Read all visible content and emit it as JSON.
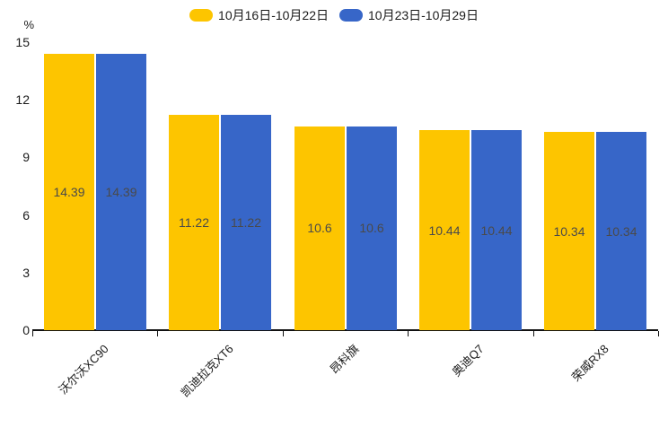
{
  "chart_data": {
    "type": "bar",
    "title": "",
    "y_unit": "%",
    "categories": [
      "沃尔沃XC90",
      "凯迪拉克XT6",
      "昂科旗",
      "奥迪Q7",
      "荣威RX8"
    ],
    "series": [
      {
        "name": "10月16日-10月22日",
        "color": "#FDC500",
        "values": [
          14.39,
          11.22,
          10.6,
          10.44,
          10.34
        ]
      },
      {
        "name": "10月23日-10月29日",
        "color": "#3766C8",
        "values": [
          14.39,
          11.22,
          10.6,
          10.44,
          10.34
        ]
      }
    ],
    "value_labels": [
      [
        "14.39",
        "11.22",
        "10.6",
        "10.44",
        "10.34"
      ],
      [
        "14.39",
        "11.22",
        "10.6",
        "10.44",
        "10.34"
      ]
    ],
    "ylim": [
      0,
      15
    ],
    "yticks": [
      0,
      3,
      6,
      9,
      12,
      15
    ],
    "legend_position": "top-center",
    "grid": false,
    "bar_label_position": "inside-middle",
    "x_label_rotation_deg": -45
  }
}
